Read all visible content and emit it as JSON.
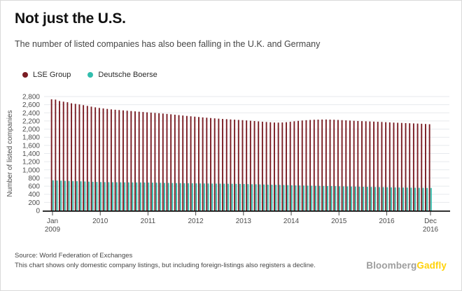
{
  "header": {
    "title": "Not just the U.S.",
    "subtitle": "The number of listed companies has also been falling in the U.K. and Germany"
  },
  "legend": {
    "items": [
      {
        "label": "LSE Group",
        "color": "#7a1c23"
      },
      {
        "label": "Deutsche Boerse",
        "color": "#32bdad"
      }
    ]
  },
  "chart_data": {
    "type": "bar",
    "title": "Not just the U.S.",
    "subtitle": "The number of listed companies has also been falling in the U.K. and Germany",
    "ylabel": "Number of listed companies",
    "xlabel": "",
    "ylim": [
      0,
      2800
    ],
    "y_tick_step": 200,
    "grid": "horizontal",
    "legend_position": "top-left",
    "x_unit": "month",
    "x_range": [
      "Jan 2009",
      "Dec 2016"
    ],
    "x_ticks": [
      {
        "month": 0,
        "lines": [
          "Jan",
          "2009"
        ]
      },
      {
        "month": 12,
        "lines": [
          "2010"
        ]
      },
      {
        "month": 24,
        "lines": [
          "2011"
        ]
      },
      {
        "month": 36,
        "lines": [
          "2012"
        ]
      },
      {
        "month": 48,
        "lines": [
          "2013"
        ]
      },
      {
        "month": 60,
        "lines": [
          "2014"
        ]
      },
      {
        "month": 72,
        "lines": [
          "2015"
        ]
      },
      {
        "month": 84,
        "lines": [
          "2016"
        ]
      },
      {
        "month": 95,
        "lines": [
          "Dec",
          "2016"
        ]
      }
    ],
    "series": [
      {
        "name": "LSE Group",
        "color": "#7a1c23",
        "values": [
          2732,
          2725,
          2690,
          2674,
          2660,
          2634,
          2620,
          2606,
          2589,
          2570,
          2552,
          2535,
          2520,
          2508,
          2496,
          2485,
          2476,
          2468,
          2460,
          2452,
          2444,
          2436,
          2428,
          2420,
          2412,
          2405,
          2398,
          2390,
          2382,
          2373,
          2364,
          2354,
          2344,
          2334,
          2324,
          2315,
          2306,
          2297,
          2288,
          2280,
          2272,
          2264,
          2257,
          2250,
          2244,
          2238,
          2232,
          2226,
          2220,
          2213,
          2206,
          2198,
          2190,
          2182,
          2175,
          2168,
          2162,
          2160,
          2163,
          2170,
          2180,
          2192,
          2203,
          2212,
          2219,
          2225,
          2230,
          2233,
          2235,
          2236,
          2234,
          2230,
          2225,
          2220,
          2215,
          2210,
          2205,
          2200,
          2196,
          2192,
          2188,
          2184,
          2180,
          2176,
          2170,
          2165,
          2160,
          2156,
          2152,
          2148,
          2144,
          2140,
          2136,
          2132,
          2126,
          2120
        ]
      },
      {
        "name": "Deutsche Boerse",
        "color": "#32bdad",
        "values": [
          742,
          738,
          734,
          730,
          727,
          724,
          721,
          718,
          714,
          710,
          706,
          702,
          700,
          698,
          697,
          696,
          695,
          694,
          693,
          692,
          691,
          690,
          690,
          689,
          688,
          686,
          684,
          682,
          680,
          678,
          677,
          675,
          674,
          672,
          671,
          670,
          668,
          667,
          666,
          665,
          663,
          662,
          661,
          660,
          659,
          658,
          656,
          655,
          652,
          650,
          647,
          645,
          642,
          640,
          637,
          635,
          632,
          630,
          627,
          625,
          621,
          618,
          616,
          614,
          612,
          610,
          608,
          606,
          604,
          602,
          601,
          600,
          596,
          594,
          592,
          590,
          588,
          586,
          584,
          582,
          580,
          578,
          576,
          575,
          572,
          570,
          568,
          567,
          565,
          564,
          562,
          561,
          559,
          558,
          556,
          555
        ]
      }
    ]
  },
  "footer": {
    "source": "Source: World Federation of Exchanges",
    "note": "This chart shows only domestic company listings, but including foreign-listings also registers a decline.",
    "brand": {
      "part1": "Bloomberg",
      "part2": "Gadfly",
      "part1_color": "#9e9e9e",
      "part2_color": "#ffd20a"
    }
  }
}
